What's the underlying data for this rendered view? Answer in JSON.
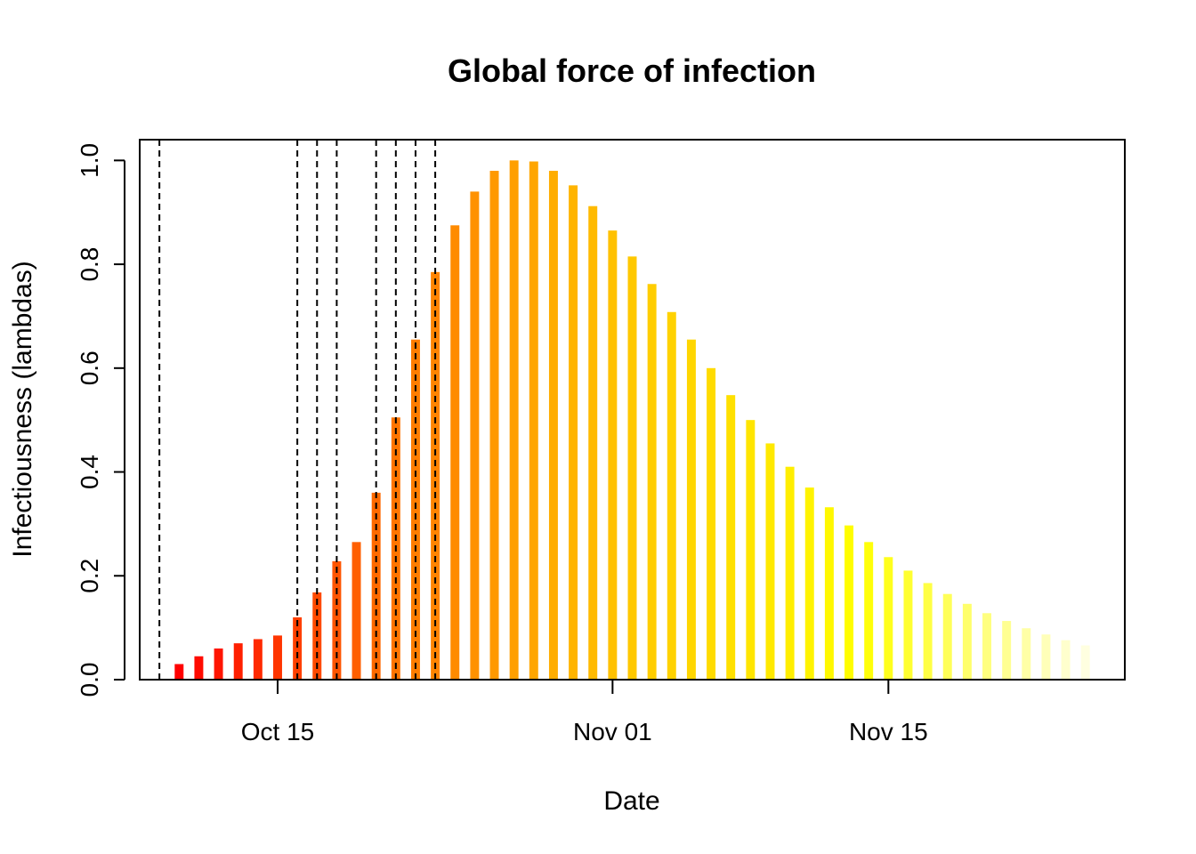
{
  "chart_data": {
    "type": "bar",
    "title": "Global force of infection",
    "xlabel": "Date",
    "ylabel": "Infectiousness (lambdas)",
    "y_ticks": [
      "0.0",
      "0.2",
      "0.4",
      "0.6",
      "0.8",
      "1.0"
    ],
    "y_tick_values": [
      0,
      0.2,
      0.4,
      0.6,
      0.8,
      1.0
    ],
    "ylim": [
      0,
      1.04
    ],
    "x_ticks": [
      {
        "label": "Oct 15",
        "date": "2014-10-15"
      },
      {
        "label": "Nov 01",
        "date": "2014-11-01"
      },
      {
        "label": "Nov 15",
        "date": "2014-11-15"
      }
    ],
    "xlim": [
      "2014-10-08",
      "2014-11-27"
    ],
    "grid": false,
    "legend": "none",
    "color_gradient": [
      "#ff0000",
      "#ff7a00",
      "#ffc800",
      "#ffff00",
      "#ffffe0"
    ],
    "case_dates": [
      "2014-10-09",
      "2014-10-16",
      "2014-10-17",
      "2014-10-18",
      "2014-10-20",
      "2014-10-21",
      "2014-10-22",
      "2014-10-23"
    ],
    "dates": [
      "2014-10-10",
      "2014-10-11",
      "2014-10-12",
      "2014-10-13",
      "2014-10-14",
      "2014-10-15",
      "2014-10-16",
      "2014-10-17",
      "2014-10-18",
      "2014-10-19",
      "2014-10-20",
      "2014-10-21",
      "2014-10-22",
      "2014-10-23",
      "2014-10-24",
      "2014-10-25",
      "2014-10-26",
      "2014-10-27",
      "2014-10-28",
      "2014-10-29",
      "2014-10-30",
      "2014-10-31",
      "2014-11-01",
      "2014-11-02",
      "2014-11-03",
      "2014-11-04",
      "2014-11-05",
      "2014-11-06",
      "2014-11-07",
      "2014-11-08",
      "2014-11-09",
      "2014-11-10",
      "2014-11-11",
      "2014-11-12",
      "2014-11-13",
      "2014-11-14",
      "2014-11-15",
      "2014-11-16",
      "2014-11-17",
      "2014-11-18",
      "2014-11-19",
      "2014-11-20",
      "2014-11-21",
      "2014-11-22",
      "2014-11-23",
      "2014-11-24",
      "2014-11-25"
    ],
    "values": [
      0.03,
      0.045,
      0.06,
      0.07,
      0.078,
      0.085,
      0.12,
      0.168,
      0.228,
      0.265,
      0.36,
      0.505,
      0.655,
      0.785,
      0.875,
      0.94,
      0.98,
      1.0,
      0.998,
      0.98,
      0.952,
      0.912,
      0.865,
      0.815,
      0.762,
      0.708,
      0.655,
      0.6,
      0.548,
      0.5,
      0.455,
      0.41,
      0.37,
      0.332,
      0.297,
      0.265,
      0.236,
      0.21,
      0.186,
      0.165,
      0.146,
      0.128,
      0.113,
      0.099,
      0.087,
      0.076,
      0.066
    ]
  }
}
